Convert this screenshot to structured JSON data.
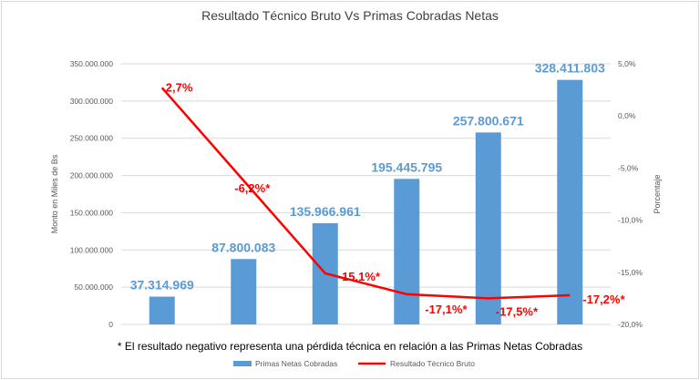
{
  "chart_data": {
    "type": "bar+line",
    "title": "Resultado Técnico Bruto Vs Primas Cobradas Netas",
    "ylabel": "Monto en Miles de Bs",
    "y2label": "Porcentaje",
    "ylim": [
      0,
      350000000
    ],
    "y2lim": [
      -20,
      5
    ],
    "yticks": [
      "0",
      "50.000.000",
      "100.000.000",
      "150.000.000",
      "200.000.000",
      "250.000.000",
      "300.000.000",
      "350.000.000"
    ],
    "y2ticks": [
      "-20,0%",
      "-15,0%",
      "-10,0%",
      "-5,0%",
      "0,0%",
      "5,0%"
    ],
    "grid": true,
    "legend_position": "bottom",
    "footnote": "* El resultado negativo representa una pérdida técnica en relación a las Primas Netas Cobradas",
    "series": [
      {
        "name": "Primas Netas Cobradas",
        "type": "bar",
        "color": "#5b9bd5",
        "values": [
          37314969,
          87800083,
          135966961,
          195445795,
          257800671,
          328411803
        ],
        "labels": [
          "37.314.969",
          "87.800.083",
          "135.966.961",
          "195.445.795",
          "257.800.671",
          "328.411.803"
        ]
      },
      {
        "name": "Resultado Técnico Bruto",
        "type": "line",
        "color": "#ff0000",
        "values": [
          2.7,
          -6.2,
          -15.1,
          -17.1,
          -17.5,
          -17.2
        ],
        "labels": [
          "2,7%",
          "-6,2%*",
          "-15,1%*",
          "-17,1%*",
          "-17,5%*",
          "-17,2%*"
        ]
      }
    ]
  }
}
